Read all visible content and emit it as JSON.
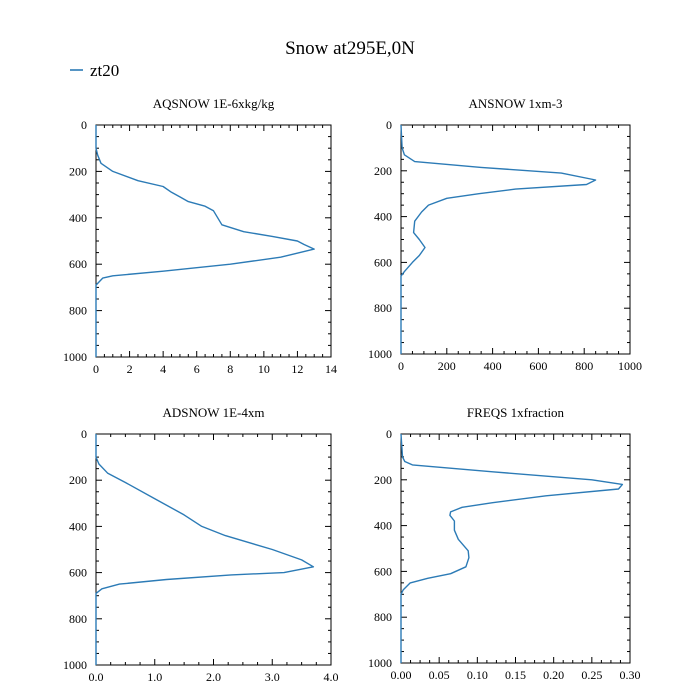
{
  "title": "Snow at295E,0N",
  "legend": {
    "label": "zt20",
    "color": "#2c7bb6"
  },
  "chart_data": [
    {
      "type": "line",
      "title": "AQSNOW  1E-6xkg/kg",
      "xlim": [
        0,
        14
      ],
      "ylim": [
        1000,
        0
      ],
      "xticks": [
        0,
        2,
        4,
        6,
        8,
        10,
        12,
        14
      ],
      "xtick_labels": [
        "0",
        "2",
        "4",
        "6",
        "8",
        "10",
        "12",
        "14"
      ],
      "yticks": [
        0,
        200,
        400,
        600,
        800,
        1000
      ],
      "ytick_labels": [
        "0",
        "200",
        "400",
        "600",
        "800",
        "1000"
      ],
      "series": [
        {
          "name": "zt20",
          "x": [
            0,
            0,
            0.1,
            0.3,
            1.0,
            2.5,
            4.0,
            4.5,
            5.0,
            5.5,
            6.5,
            7.0,
            7.5,
            8.8,
            10.5,
            12.0,
            12.4,
            13.0,
            11.0,
            8.0,
            4.0,
            1.0,
            0.4,
            0,
            0
          ],
          "y": [
            0,
            100,
            130,
            165,
            200,
            240,
            265,
            290,
            310,
            330,
            350,
            370,
            430,
            460,
            480,
            500,
            515,
            535,
            570,
            600,
            630,
            650,
            660,
            690,
            1000
          ]
        }
      ]
    },
    {
      "type": "line",
      "title": "ANSNOW  1xm-3",
      "xlim": [
        0,
        1000
      ],
      "ylim": [
        1000,
        0
      ],
      "xticks": [
        0,
        200,
        400,
        600,
        800,
        1000
      ],
      "xtick_labels": [
        "0",
        "200",
        "400",
        "600",
        "800",
        "1000"
      ],
      "yticks": [
        0,
        200,
        400,
        600,
        800,
        1000
      ],
      "ytick_labels": [
        "0",
        "200",
        "400",
        "600",
        "800",
        "1000"
      ],
      "series": [
        {
          "name": "zt20",
          "x": [
            0,
            5,
            15,
            60,
            350,
            700,
            850,
            810,
            500,
            340,
            200,
            120,
            90,
            60,
            55,
            80,
            105,
            80,
            50,
            15,
            0,
            0
          ],
          "y": [
            0,
            100,
            130,
            160,
            185,
            210,
            240,
            260,
            280,
            300,
            320,
            350,
            380,
            420,
            470,
            500,
            535,
            570,
            600,
            640,
            660,
            1000
          ]
        }
      ]
    },
    {
      "type": "line",
      "title": "ADSNOW  1E-4xm",
      "xlim": [
        0,
        4
      ],
      "ylim": [
        1000,
        0
      ],
      "xticks": [
        0,
        1,
        2,
        3,
        4
      ],
      "xtick_labels": [
        "0.0",
        "1.0",
        "2.0",
        "3.0",
        "4.0"
      ],
      "yticks": [
        0,
        200,
        400,
        600,
        800,
        1000
      ],
      "ytick_labels": [
        "0",
        "200",
        "400",
        "600",
        "800",
        "1000"
      ],
      "series": [
        {
          "name": "zt20",
          "x": [
            0,
            0,
            0.05,
            0.2,
            0.5,
            1.0,
            1.5,
            1.8,
            2.2,
            3.0,
            3.5,
            3.7,
            3.2,
            2.3,
            1.2,
            0.4,
            0.1,
            0,
            0
          ],
          "y": [
            0,
            100,
            130,
            170,
            210,
            280,
            350,
            400,
            440,
            500,
            545,
            575,
            600,
            610,
            630,
            650,
            670,
            690,
            1000
          ]
        }
      ]
    },
    {
      "type": "line",
      "title": "FREQS  1xfraction",
      "xlim": [
        0,
        0.3
      ],
      "ylim": [
        1000,
        0
      ],
      "xticks": [
        0,
        0.05,
        0.1,
        0.15,
        0.2,
        0.25,
        0.3
      ],
      "xtick_labels": [
        "0.00",
        "0.05",
        "0.10",
        "0.15",
        "0.20",
        "0.25",
        "0.30"
      ],
      "yticks": [
        0,
        200,
        400,
        600,
        800,
        1000
      ],
      "ytick_labels": [
        "0",
        "200",
        "400",
        "600",
        "800",
        "1000"
      ],
      "series": [
        {
          "name": "zt20",
          "x": [
            0,
            0.002,
            0.005,
            0.015,
            0.12,
            0.25,
            0.29,
            0.285,
            0.19,
            0.12,
            0.08,
            0.065,
            0.064,
            0.07,
            0.07,
            0.075,
            0.088,
            0.089,
            0.085,
            0.065,
            0.035,
            0.012,
            0.003,
            0,
            0
          ],
          "y": [
            0,
            100,
            120,
            135,
            165,
            200,
            220,
            240,
            270,
            300,
            320,
            340,
            355,
            380,
            420,
            460,
            510,
            540,
            580,
            610,
            630,
            650,
            680,
            700,
            1000
          ]
        }
      ]
    }
  ]
}
